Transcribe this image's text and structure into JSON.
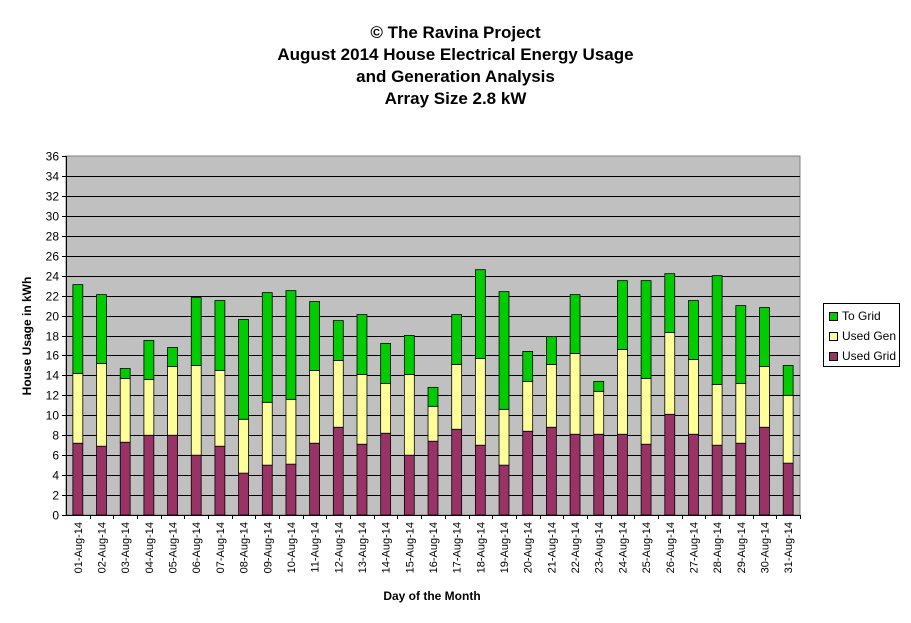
{
  "title_lines": [
    "© The Ravina Project",
    "August 2014 House Electrical Energy Usage",
    "and Generation Analysis",
    "Array Size 2.8 kW"
  ],
  "colors": {
    "plot_background": "#c0c0c0",
    "used_grid": "#993366",
    "used_gen": "#ffff99",
    "to_grid": "#00cc00"
  },
  "chart_data": {
    "type": "bar",
    "stacked": true,
    "xlabel": "Day of the Month",
    "ylabel": "House Usage in kWh",
    "ylim": [
      0,
      36
    ],
    "ytick_step": 2,
    "grid": true,
    "legend_position": "right",
    "categories": [
      "01-Aug-14",
      "02-Aug-14",
      "03-Aug-14",
      "04-Aug-14",
      "05-Aug-14",
      "06-Aug-14",
      "07-Aug-14",
      "08-Aug-14",
      "09-Aug-14",
      "10-Aug-14",
      "11-Aug-14",
      "12-Aug-14",
      "13-Aug-14",
      "14-Aug-14",
      "15-Aug-14",
      "16-Aug-14",
      "17-Aug-14",
      "18-Aug-14",
      "19-Aug-14",
      "20-Aug-14",
      "21-Aug-14",
      "22-Aug-14",
      "23-Aug-14",
      "24-Aug-14",
      "25-Aug-14",
      "26-Aug-14",
      "27-Aug-14",
      "28-Aug-14",
      "29-Aug-14",
      "30-Aug-14",
      "31-Aug-14"
    ],
    "series": [
      {
        "name": "Used Grid",
        "color": "#993366",
        "values": [
          7.2,
          6.9,
          7.3,
          8.0,
          8.0,
          6.0,
          6.9,
          4.2,
          5.0,
          5.1,
          7.2,
          8.8,
          7.1,
          8.2,
          6.0,
          7.4,
          8.6,
          7.0,
          5.0,
          8.4,
          8.8,
          8.1,
          8.1,
          8.1,
          7.1,
          10.1,
          8.1,
          7.0,
          7.2,
          8.8,
          5.2
        ]
      },
      {
        "name": "Used Gen",
        "color": "#ffff99",
        "values": [
          7.0,
          8.3,
          6.4,
          5.6,
          6.9,
          9.0,
          7.6,
          5.4,
          6.3,
          6.5,
          7.3,
          6.7,
          7.0,
          5.0,
          8.1,
          3.5,
          6.5,
          8.7,
          5.6,
          5.0,
          6.3,
          8.1,
          4.3,
          8.5,
          6.6,
          8.2,
          7.5,
          6.1,
          6.0,
          6.1,
          6.8
        ]
      },
      {
        "name": "To Grid",
        "color": "#00cc00",
        "values": [
          8.9,
          6.9,
          1.0,
          3.9,
          1.9,
          6.8,
          7.0,
          10.0,
          11.0,
          10.9,
          6.9,
          4.0,
          6.0,
          4.0,
          3.9,
          1.9,
          5.0,
          8.9,
          11.8,
          3.0,
          2.8,
          5.9,
          1.0,
          6.9,
          9.8,
          5.9,
          5.9,
          10.9,
          7.8,
          5.9,
          3.0
        ]
      }
    ]
  }
}
